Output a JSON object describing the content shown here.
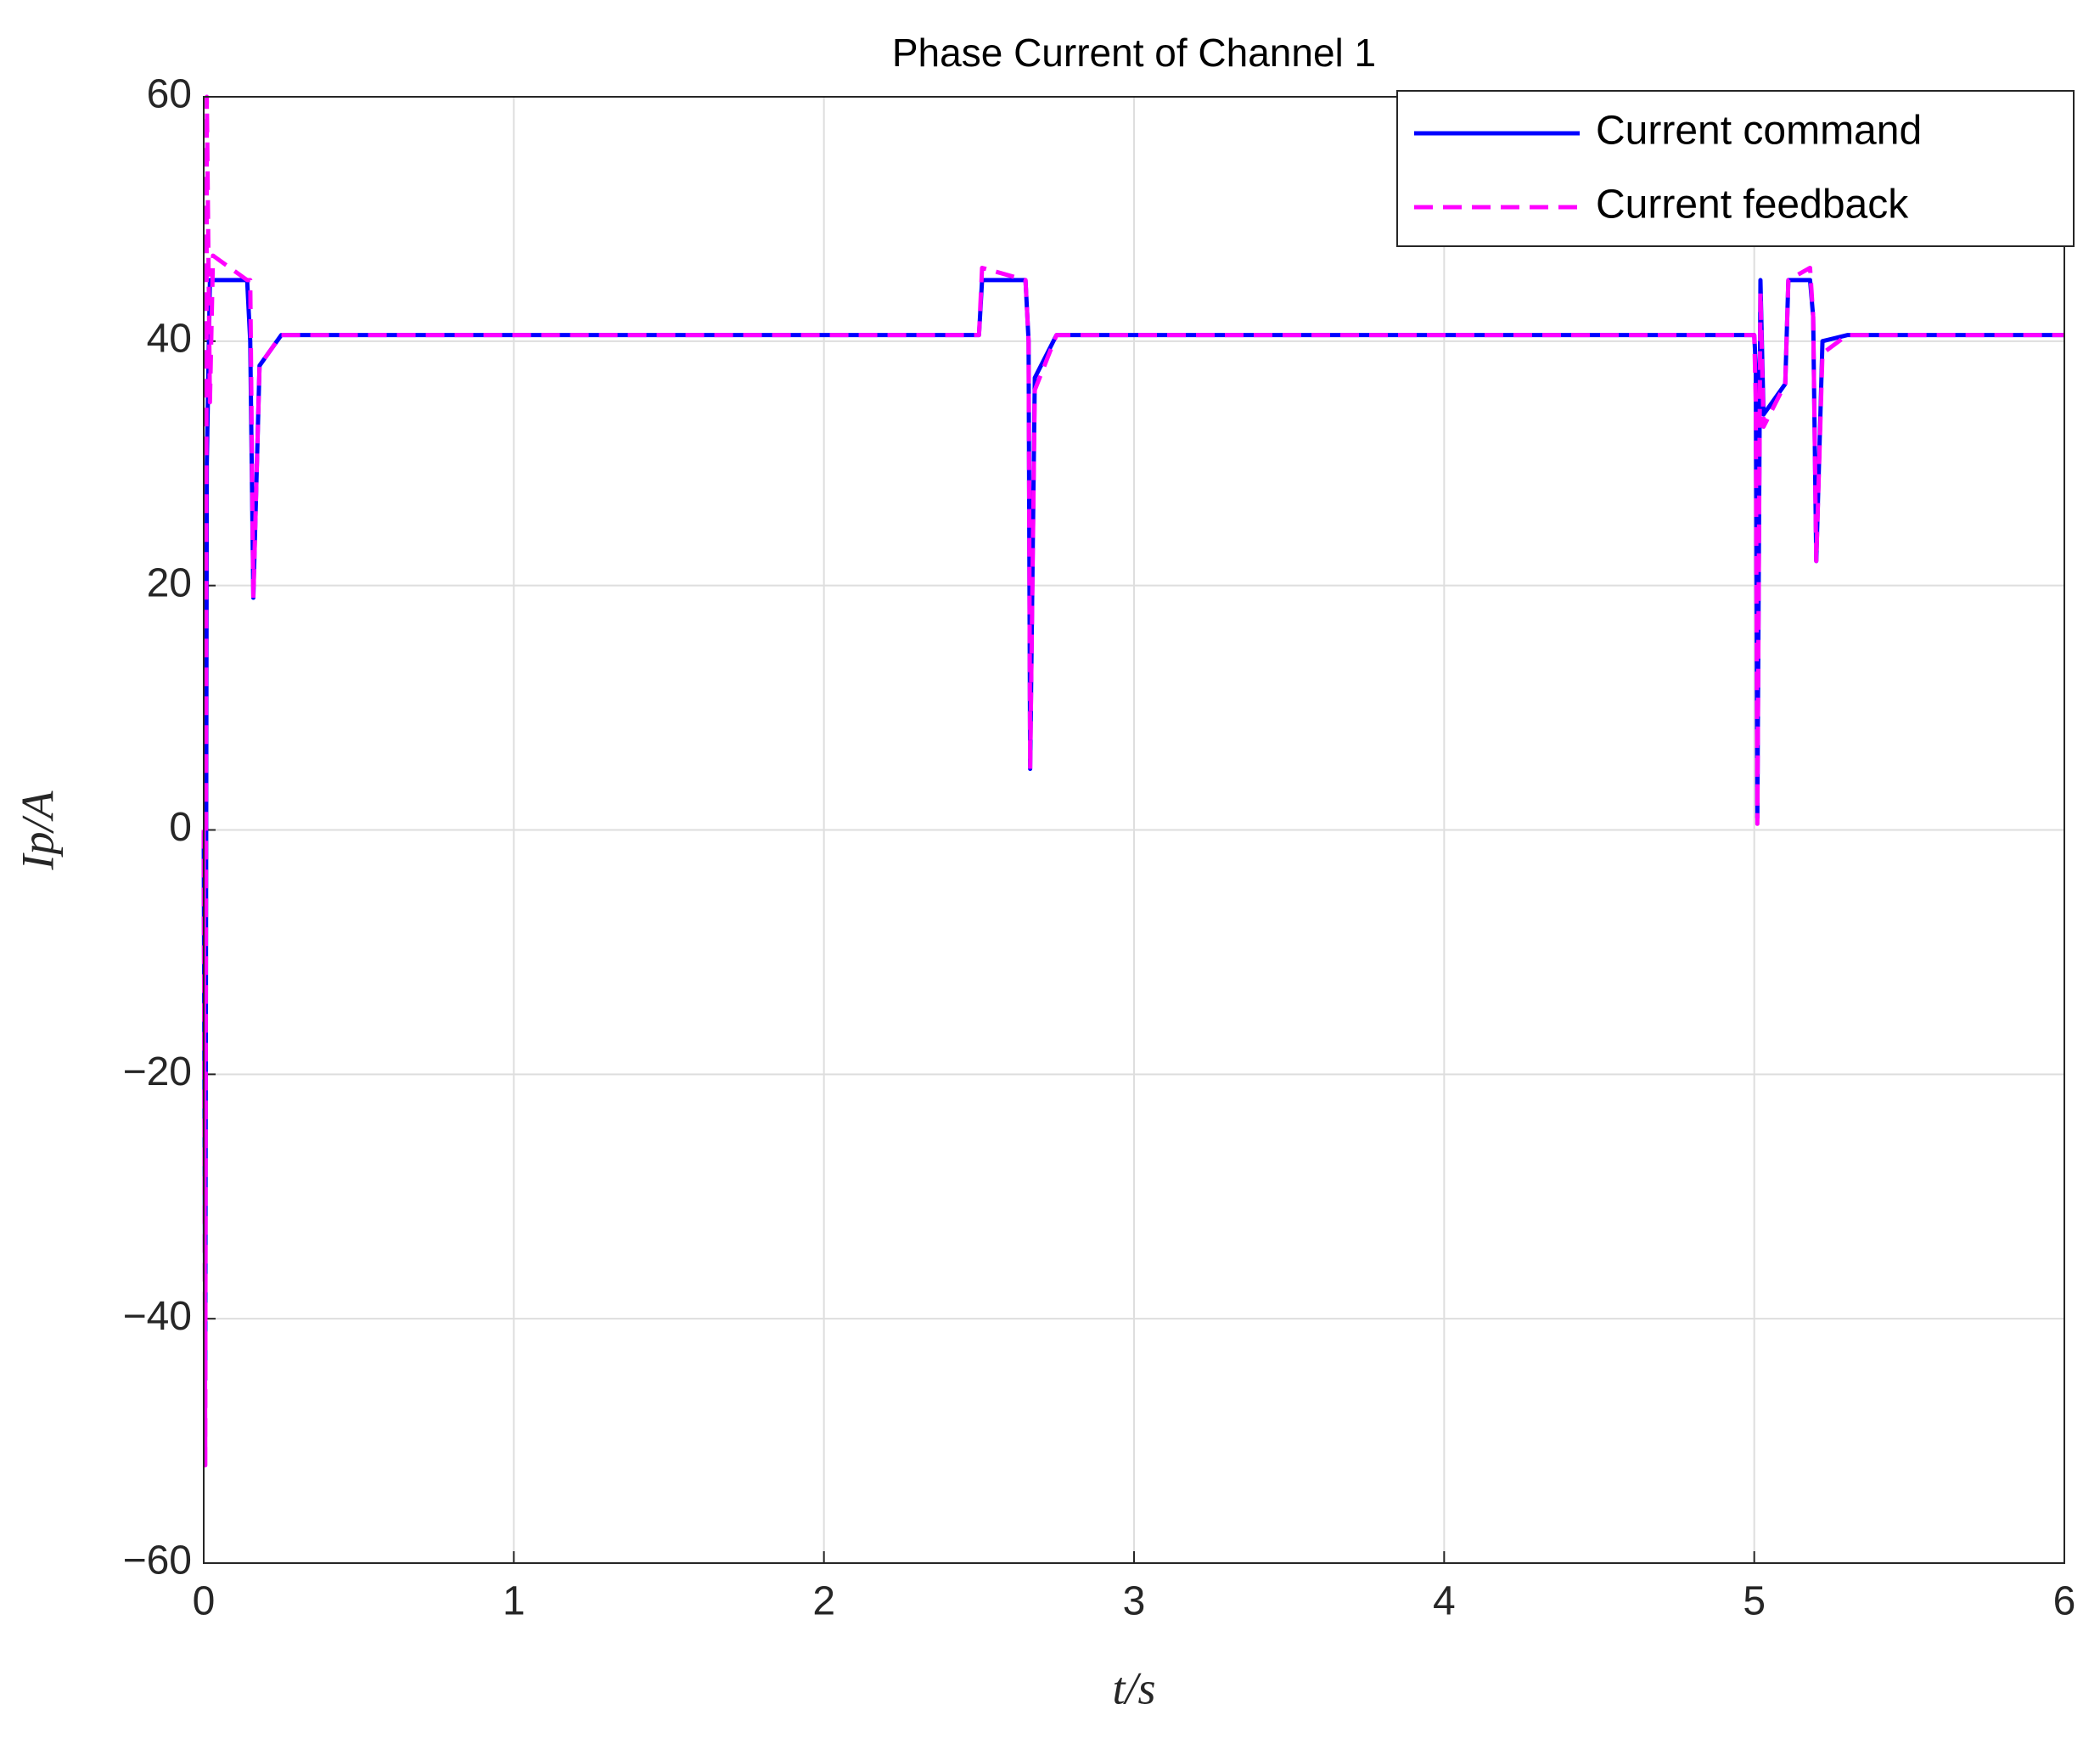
{
  "chart_data": {
    "type": "line",
    "title": "Phase Current of Channel 1",
    "x_label": "t/s",
    "y_label": "Ip/A",
    "x": [
      0,
      0.005,
      0.01,
      0.02,
      0.03,
      0.14,
      0.15,
      0.16,
      0.18,
      0.25,
      2.5,
      2.51,
      2.65,
      2.66,
      2.665,
      2.68,
      2.75,
      5.0,
      5.005,
      5.01,
      5.02,
      5.03,
      5.1,
      5.11,
      5.18,
      5.19,
      5.2,
      5.22,
      5.3,
      6
    ],
    "series": [
      {
        "name": "Current command",
        "color": "#0000ff",
        "dashed": false,
        "values": [
          0,
          -45,
          30,
          45,
          45,
          45,
          40,
          19,
          38,
          40.5,
          40.5,
          45,
          45,
          40,
          5,
          37,
          40.5,
          40.5,
          38,
          1,
          45,
          34,
          36.5,
          45,
          45,
          42,
          22,
          40,
          40.5,
          40.5
        ]
      },
      {
        "name": "Current feedback",
        "color": "#ff00ff",
        "dashed": true,
        "values": [
          0,
          -52,
          60,
          35,
          47,
          45,
          45,
          19,
          38,
          40.5,
          40.5,
          46,
          45,
          40,
          5,
          36,
          40.5,
          40.5,
          35,
          0.5,
          44,
          33,
          36.5,
          45,
          46,
          42,
          22,
          39,
          40.5,
          40.5
        ]
      }
    ],
    "xlim": [
      0,
      6
    ],
    "xticks": [
      0,
      1,
      2,
      3,
      4,
      5,
      6
    ],
    "ylim": [
      -60,
      60
    ],
    "yticks": [
      {
        "value": -60,
        "label": "−60"
      },
      {
        "value": -40,
        "label": "−40"
      },
      {
        "value": -20,
        "label": "−20"
      },
      0,
      20,
      40,
      60
    ],
    "grid": true,
    "legend": "top-right"
  }
}
